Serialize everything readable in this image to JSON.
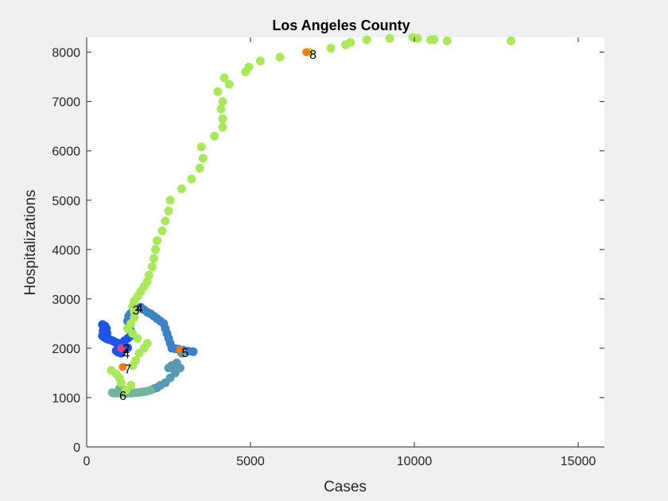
{
  "chart_data": {
    "type": "scatter",
    "title": "Los Angeles County",
    "xlabel": "Cases",
    "ylabel": "Hospitalizations",
    "xlim": [
      0,
      15800
    ],
    "ylim": [
      0,
      8300
    ],
    "xticks": [
      0,
      5000,
      10000,
      15000
    ],
    "yticks": [
      0,
      1000,
      2000,
      3000,
      4000,
      5000,
      6000,
      7000,
      8000
    ],
    "grid": false,
    "colors": {
      "blue": "#1f55e6",
      "steel": "#3d82c4",
      "teal": "#5a9ab0",
      "seafoam": "#72b69a",
      "green": "#a9e85a",
      "marker_orange": "#f77a13",
      "marker_pink": "#e0418c"
    },
    "series": [
      {
        "color": "blue",
        "points": [
          [
            480,
            2480
          ],
          [
            520,
            2420
          ],
          [
            560,
            2450
          ],
          [
            600,
            2400
          ],
          [
            500,
            2350
          ],
          [
            560,
            2320
          ],
          [
            620,
            2300
          ],
          [
            480,
            2250
          ],
          [
            540,
            2220
          ],
          [
            600,
            2200
          ],
          [
            660,
            2180
          ],
          [
            720,
            2170
          ],
          [
            800,
            2150
          ],
          [
            880,
            2120
          ],
          [
            960,
            2100
          ],
          [
            1050,
            2080
          ],
          [
            1150,
            2050
          ],
          [
            1250,
            2010
          ],
          [
            1100,
            2000
          ],
          [
            980,
            1980
          ],
          [
            900,
            1950
          ],
          [
            960,
            1920
          ],
          [
            1050,
            1900
          ],
          [
            1150,
            2150
          ],
          [
            1250,
            2200
          ],
          [
            1350,
            2250
          ]
        ]
      },
      {
        "color": "steel",
        "points": [
          [
            1350,
            2350
          ],
          [
            1300,
            2450
          ],
          [
            1250,
            2550
          ],
          [
            1280,
            2650
          ],
          [
            1330,
            2700
          ],
          [
            1400,
            2750
          ],
          [
            1500,
            2820
          ],
          [
            1650,
            2830
          ],
          [
            1750,
            2780
          ],
          [
            1850,
            2730
          ],
          [
            1950,
            2700
          ],
          [
            2050,
            2650
          ],
          [
            2150,
            2600
          ],
          [
            2250,
            2550
          ],
          [
            2350,
            2500
          ],
          [
            2400,
            2400
          ],
          [
            2450,
            2300
          ],
          [
            2500,
            2200
          ],
          [
            2550,
            2100
          ],
          [
            2600,
            2000
          ],
          [
            2700,
            1990
          ],
          [
            2800,
            1980
          ],
          [
            2950,
            1960
          ],
          [
            3100,
            1940
          ],
          [
            3250,
            1930
          ]
        ]
      },
      {
        "color": "teal",
        "points": [
          [
            2900,
            1900
          ],
          [
            2750,
            1700
          ],
          [
            2600,
            1650
          ],
          [
            2500,
            1600
          ],
          [
            2850,
            1600
          ],
          [
            2700,
            1500
          ],
          [
            2550,
            1400
          ],
          [
            2400,
            1300
          ],
          [
            2250,
            1250
          ],
          [
            2150,
            1200
          ],
          [
            2050,
            1180
          ]
        ]
      },
      {
        "color": "seafoam",
        "points": [
          [
            1950,
            1150
          ],
          [
            1850,
            1130
          ],
          [
            1750,
            1120
          ],
          [
            1650,
            1110
          ],
          [
            1550,
            1100
          ],
          [
            1450,
            1100
          ],
          [
            1350,
            1090
          ],
          [
            1250,
            1090
          ],
          [
            1150,
            1090
          ],
          [
            1050,
            1090
          ],
          [
            950,
            1090
          ],
          [
            850,
            1090
          ],
          [
            780,
            1100
          ],
          [
            1000,
            1180
          ],
          [
            1150,
            1150
          ]
        ]
      },
      {
        "color": "green",
        "points": [
          [
            750,
            1550
          ],
          [
            900,
            1480
          ],
          [
            1000,
            1400
          ],
          [
            1050,
            1300
          ],
          [
            1200,
            1150
          ],
          [
            1350,
            1250
          ],
          [
            1400,
            1650
          ],
          [
            1500,
            1750
          ],
          [
            1600,
            1900
          ],
          [
            1750,
            2000
          ],
          [
            1850,
            2100
          ],
          [
            1550,
            2200
          ],
          [
            1400,
            2300
          ],
          [
            1250,
            2400
          ],
          [
            1350,
            2500
          ],
          [
            1450,
            2620
          ],
          [
            1450,
            2750
          ],
          [
            1400,
            2850
          ],
          [
            1450,
            2950
          ],
          [
            1550,
            3050
          ],
          [
            1650,
            3150
          ],
          [
            1750,
            3250
          ],
          [
            1850,
            3350
          ],
          [
            1900,
            3480
          ],
          [
            2000,
            3650
          ],
          [
            2050,
            3820
          ],
          [
            2100,
            4000
          ],
          [
            2150,
            4180
          ],
          [
            2300,
            4380
          ],
          [
            2400,
            4580
          ],
          [
            2500,
            4780
          ],
          [
            2550,
            5000
          ],
          [
            2900,
            5230
          ],
          [
            3200,
            5430
          ],
          [
            3450,
            5650
          ],
          [
            3550,
            5850
          ],
          [
            3500,
            6080
          ],
          [
            3900,
            6300
          ],
          [
            4150,
            6480
          ],
          [
            4150,
            6650
          ],
          [
            4100,
            6850
          ],
          [
            4150,
            7000
          ],
          [
            4000,
            7200
          ],
          [
            4350,
            7350
          ],
          [
            4200,
            7480
          ],
          [
            4850,
            7600
          ],
          [
            4950,
            7700
          ],
          [
            5300,
            7820
          ],
          [
            5900,
            7900
          ],
          [
            6800,
            8000
          ],
          [
            7450,
            8080
          ],
          [
            7900,
            8150
          ],
          [
            8050,
            8200
          ],
          [
            8550,
            8250
          ],
          [
            9250,
            8280
          ],
          [
            9950,
            8300
          ],
          [
            10100,
            8280
          ],
          [
            10500,
            8250
          ],
          [
            10600,
            8260
          ],
          [
            11000,
            8230
          ],
          [
            12950,
            8230
          ]
        ]
      }
    ],
    "markers": [
      {
        "x": 1050,
        "y": 2000,
        "color": "marker_pink"
      },
      {
        "x": 2850,
        "y": 1970,
        "color": "marker_orange"
      },
      {
        "x": 1100,
        "y": 1620,
        "color": "marker_orange"
      },
      {
        "x": 6700,
        "y": 8000,
        "color": "marker_orange"
      }
    ],
    "annotations": [
      {
        "text": "2",
        "x": 1050,
        "y": 2000
      },
      {
        "text": "4",
        "x": 1050,
        "y": 1890
      },
      {
        "text": "3",
        "x": 1350,
        "y": 2780
      },
      {
        "text": "4",
        "x": 1450,
        "y": 2820
      },
      {
        "text": "5",
        "x": 2850,
        "y": 1920
      },
      {
        "text": "6",
        "x": 950,
        "y": 1050
      },
      {
        "text": "7",
        "x": 1100,
        "y": 1590
      },
      {
        "text": "8",
        "x": 6750,
        "y": 7960
      }
    ]
  }
}
